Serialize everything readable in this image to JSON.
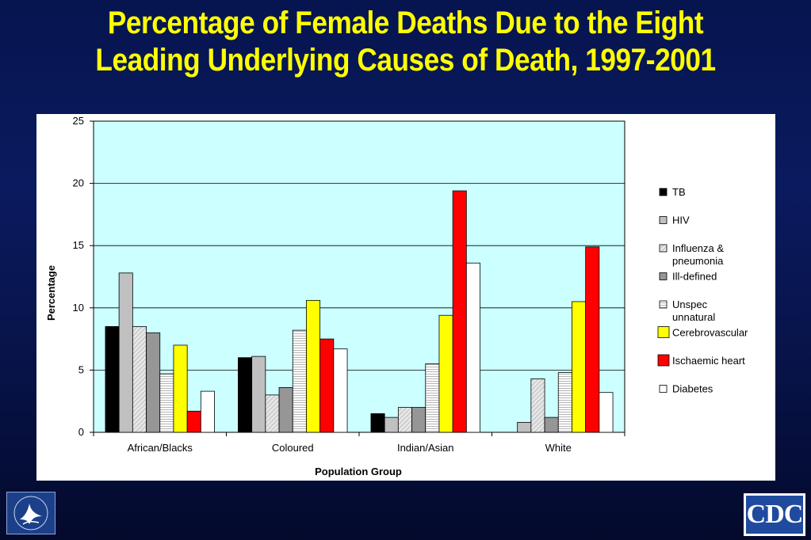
{
  "slide": {
    "title_line1": "Percentage of Female Deaths Due to the Eight",
    "title_line2": "Leading Underlying Causes of Death, 1997-2001"
  },
  "logos": {
    "cdc_text": "CDC"
  },
  "chart_data": {
    "type": "bar",
    "title": "",
    "xlabel": "Population Group",
    "ylabel": "Percentage",
    "ylim": [
      0,
      25
    ],
    "yticks": [
      0,
      5,
      10,
      15,
      20,
      25
    ],
    "grid": true,
    "legend_position": "right",
    "plot_background": "#ccffff",
    "categories": [
      "African/Blacks",
      "Coloured",
      "Indian/Asian",
      "White"
    ],
    "series": [
      {
        "name": "TB",
        "values": [
          8.5,
          6.0,
          1.5,
          0.0
        ],
        "color": "#000000",
        "pattern": "solid"
      },
      {
        "name": "HIV",
        "values": [
          12.8,
          6.1,
          1.2,
          0.8
        ],
        "color": "#c0c0c0",
        "pattern": "solid"
      },
      {
        "name": "Influenza & pneumonia",
        "values": [
          8.5,
          3.0,
          2.0,
          4.3
        ],
        "color": "#d8d8d8",
        "pattern": "hatch"
      },
      {
        "name": "Ill-defined",
        "values": [
          8.0,
          3.6,
          2.0,
          1.2
        ],
        "color": "#969696",
        "pattern": "solid"
      },
      {
        "name": "Unspec unnatural",
        "values": [
          4.7,
          8.2,
          5.5,
          4.8
        ],
        "color": "#f4f4f4",
        "pattern": "hlines"
      },
      {
        "name": "Cerebrovascular",
        "values": [
          7.0,
          10.6,
          9.4,
          10.5
        ],
        "color": "#ffff00",
        "pattern": "solid"
      },
      {
        "name": "Ischaemic heart",
        "values": [
          1.7,
          7.5,
          19.4,
          14.9
        ],
        "color": "#ff0000",
        "pattern": "solid"
      },
      {
        "name": "Diabetes",
        "values": [
          3.3,
          6.7,
          13.6,
          3.2
        ],
        "color": "#ffffff",
        "pattern": "solid"
      }
    ]
  }
}
